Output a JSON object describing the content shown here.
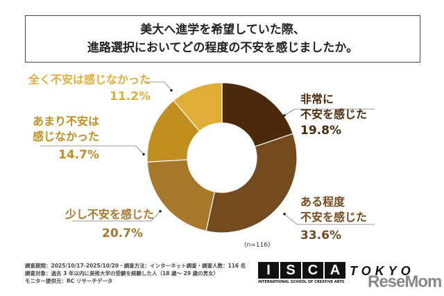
{
  "title": [
    "美大へ進学を希望していた際、",
    "進路選択においてどの程度の不安を感じましたか。"
  ],
  "chart_data": {
    "type": "pie",
    "donut": true,
    "title": "美大へ進学を希望していた際、進路選択においてどの程度の不安を感じましたか。",
    "categories": [
      "非常に不安を感じた",
      "ある程度不安を感じた",
      "少し不安を感じた",
      "あまり不安は感じなかった",
      "全く不安は感じなかった"
    ],
    "values": [
      19.8,
      33.6,
      20.7,
      14.7,
      11.2
    ],
    "value_labels": [
      "19.8%",
      "33.6%",
      "20.7%",
      "14.7%",
      "11.2%"
    ],
    "label_lines": [
      [
        "非常に",
        "不安を感じた"
      ],
      [
        "ある程度",
        "不安を感じた"
      ],
      [
        "少し不安を感じた"
      ],
      [
        "あまり不安は",
        "感じなかった"
      ],
      [
        "全く不安は感じなかった"
      ]
    ],
    "colors": [
      "#4b2a0b",
      "#734b1e",
      "#a7772a",
      "#c18f20",
      "#e0ae36"
    ],
    "sample": "(n=116)"
  },
  "footer": [
    "調査期間：2025/10/17-2025/10/20・調査方法：インターネット調査・調査人数：116 名",
    "調査対象：過去 3 年以内に美術大学の受験を経験した人（18 歳～ 29 歳の男女）",
    "モニター提供元：RC リサーチデータ"
  ],
  "logo": {
    "letters": [
      "I",
      "S",
      "C",
      "A"
    ],
    "city": "TOKYO",
    "subtitle": "INTERNATIONAL SCHOOL OF CREATIVE ARTS",
    "watermark": "ReseMom"
  }
}
